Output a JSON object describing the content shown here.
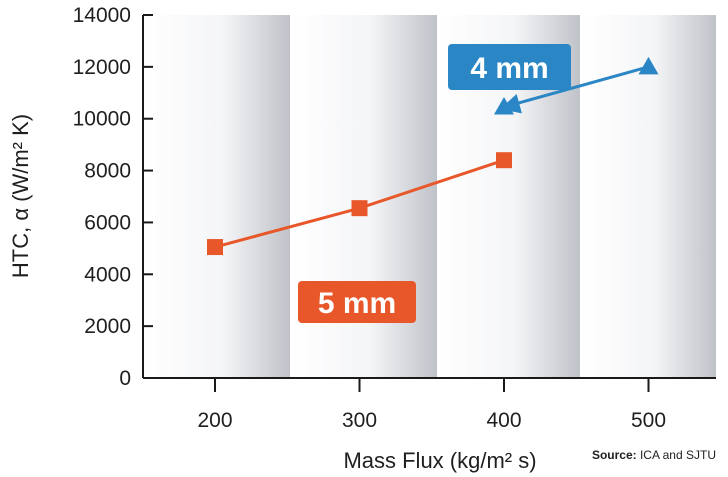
{
  "chart_data": {
    "type": "line",
    "xlabel": "Mass Flux (kg/m² s)",
    "ylabel": "HTC, α  (W/m² K)",
    "x_ticks": [
      200,
      300,
      400,
      500
    ],
    "y_ticks": [
      0,
      2000,
      4000,
      6000,
      8000,
      10000,
      12000,
      14000
    ],
    "xlim": [
      150,
      550
    ],
    "ylim": [
      0,
      14000
    ],
    "series": [
      {
        "name": "5 mm",
        "label": "5 mm",
        "color": "#e8572a",
        "marker": "square",
        "x": [
          200,
          300,
          400
        ],
        "values": [
          5050,
          6550,
          8400
        ]
      },
      {
        "name": "4 mm",
        "label": "4 mm",
        "color": "#2a86c4",
        "marker": "triangle",
        "x": [
          400,
          500
        ],
        "values": [
          10450,
          12000
        ]
      }
    ],
    "source": {
      "prefix": "Source:",
      "text": " ICA and SJTU"
    }
  }
}
